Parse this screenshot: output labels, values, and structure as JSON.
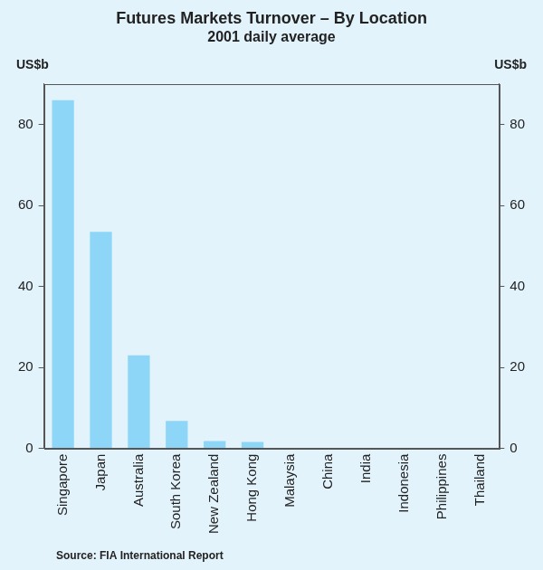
{
  "chart_data": {
    "type": "bar",
    "title": "Futures Markets Turnover – By Location",
    "subtitle": "2001 daily average",
    "y_label": "US$b",
    "note": "Source: FIA International Report",
    "categories": [
      "Singapore",
      "Japan",
      "Australia",
      "South Korea",
      "New Zealand",
      "Hong Kong",
      "Malaysia",
      "China",
      "India",
      "Indonesia",
      "Philippines",
      "Thailand"
    ],
    "values": [
      86,
      53.5,
      23,
      6.8,
      1.8,
      1.6,
      0,
      0,
      0,
      0,
      0,
      0
    ],
    "color": "#8dd6f7",
    "ylim": [
      0,
      90
    ],
    "yticks": [
      0,
      20,
      40,
      60,
      80
    ],
    "grid": false
  }
}
